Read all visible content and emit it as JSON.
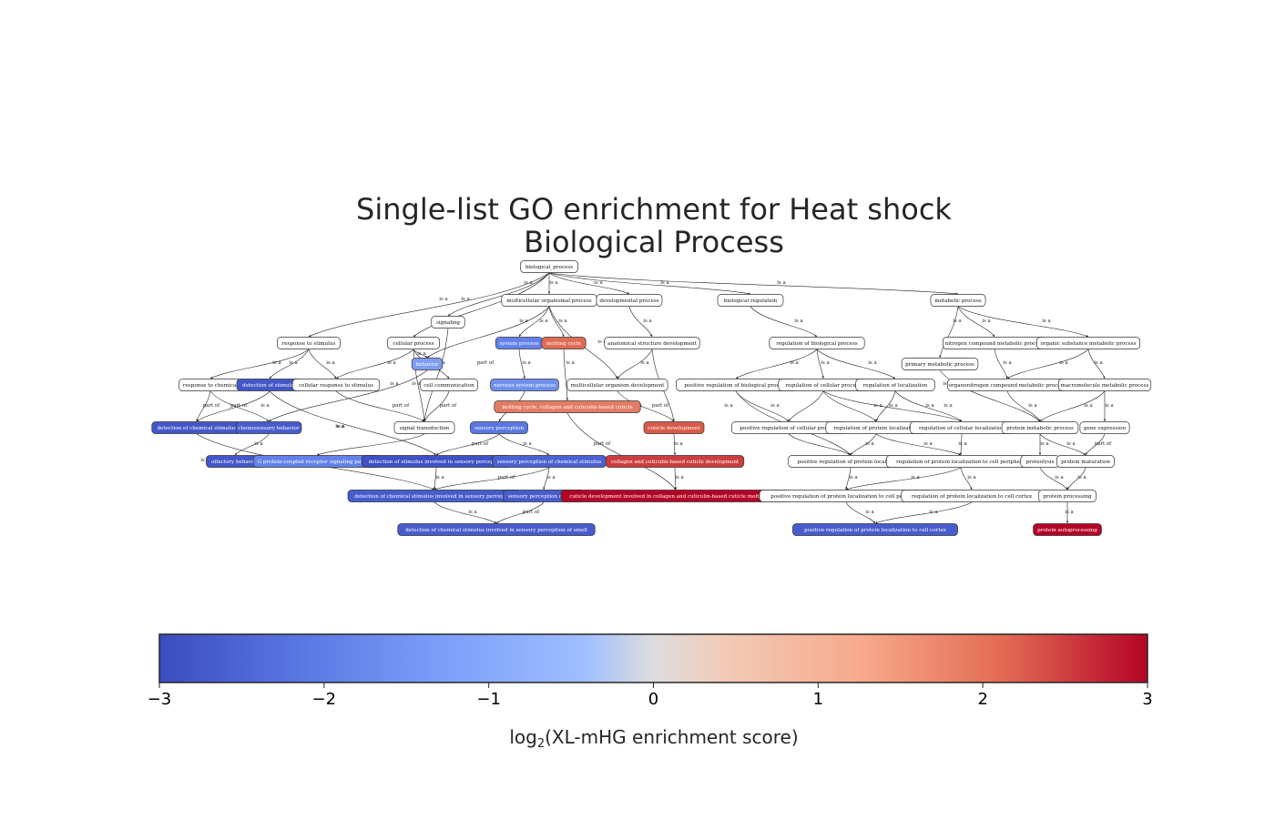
{
  "title": {
    "line1": "Single-list GO enrichment for Heat shock",
    "line2": "Biological Process"
  },
  "colorbar": {
    "label_prefix": "log",
    "label_subscript": "2",
    "label_suffix": "(XL-mHG enrichment score)",
    "ticks": [
      "−3",
      "−2",
      "−1",
      "0",
      "1",
      "2",
      "3"
    ],
    "range": [
      -3,
      3
    ],
    "colormap": [
      "#3b4cc0",
      "#6788ee",
      "#9abbff",
      "#c9d7f0",
      "#e6d7cf",
      "#f7a889",
      "#e26952",
      "#b40426"
    ]
  },
  "nodes": {
    "bp": "biological_process",
    "rs": "response to stimulus",
    "cp": "cellular process",
    "sig": "signaling",
    "mop": "multicellular organismal process",
    "dp": "developmental process",
    "breg": "biological regulation",
    "mp": "metabolic process",
    "rc": "response to chemical",
    "dos": "detection of stimulus",
    "crs": "cellular response to stimulus",
    "beh": "behavior",
    "cc": "cell communication",
    "sp": "system process",
    "mc": "molting cycle",
    "asd": "anatomical structure development",
    "rbp": "regulation of biological process",
    "pmp": "primary metabolic process",
    "ncmp": "nitrogen compound metabolic process",
    "osmp": "organic substance metabolic process",
    "dcs": "detection of chemical stimulus",
    "csb": "chemosensory behavior",
    "st": "signal transduction",
    "nsp": "nervous system process",
    "mod": "multicellular organism development",
    "prbp": "positive regulation of biological process",
    "rcp": "regulation of cellular process",
    "rol": "regulation of localization",
    "oncmp": "organonitrogen compound metabolic process",
    "mmp": "macromolecule metabolic process",
    "mccc": "molting cycle, collagen and cuticulin-based cuticle",
    "sperc": "sensory perception",
    "cd": "cuticle development",
    "prcp": "positive regulation of cellular process",
    "rpl": "regulation of protein localization",
    "rcl": "regulation of cellular localization",
    "pmp2": "protein metabolic process",
    "ge": "gene expression",
    "ob": "olfactory behavior",
    "gpcr": "G protein-coupled receptor signaling pathway",
    "dsisp": "detection of stimulus involved in sensory perception",
    "spcs": "sensory perception of chemical stimulus",
    "ccbcd": "collagen and cuticulin-based cuticle development",
    "prpl": "positive regulation of protein localization",
    "rplcp": "regulation of protein localization to cell periphery",
    "prot": "proteolysis",
    "pmat": "protein maturation",
    "dcsisp": "detection of chemical stimulus involved in sensory perception",
    "sps": "sensory perception of smell",
    "cdimc": "cuticle development involved in collagen and cuticulin-based cuticle molting cycle",
    "prplcp": "positive regulation of protein localization to cell periphery",
    "rplcc": "regulation of protein localization to cell cortex",
    "ppro": "protein processing",
    "dcsisps": "detection of chemical stimulus involved in sensory perception of smell",
    "prplcc": "positive regulation of protein localization to cell cortex",
    "pap": "protein autoprocessing"
  },
  "edge_labels": {
    "is_a": "is a",
    "part_of": "part of"
  },
  "node_scores": {
    "dos": -2.8,
    "beh": -1.6,
    "sp": -2.0,
    "mc": 1.9,
    "dcs": -2.8,
    "csb": -2.7,
    "nsp": -1.8,
    "mccc": 1.7,
    "sperc": -2.2,
    "cd": 2.1,
    "ob": -2.8,
    "gpcr": -2.0,
    "dsisp": -2.9,
    "spcs": -2.6,
    "ccbcd": 2.4,
    "dcsisp": -2.7,
    "sps": -2.7,
    "cdimc": 3.0,
    "dcsisps": -2.7,
    "prplcc": -2.7,
    "pap": 3.0
  }
}
